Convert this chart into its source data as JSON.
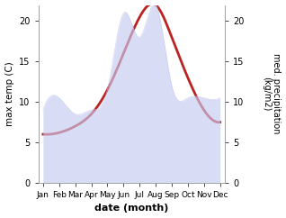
{
  "months": [
    "Jan",
    "Feb",
    "Mar",
    "Apr",
    "May",
    "Jun",
    "Jul",
    "Aug",
    "Sep",
    "Oct",
    "Nov",
    "Dec"
  ],
  "month_positions": [
    0,
    1,
    2,
    3,
    4,
    5,
    6,
    7,
    8,
    9,
    10,
    11
  ],
  "temperature": [
    6.0,
    6.2,
    7.0,
    8.5,
    11.5,
    16.0,
    20.5,
    22.0,
    18.0,
    13.0,
    9.0,
    7.5
  ],
  "precipitation": [
    9.0,
    10.5,
    8.5,
    9.0,
    11.5,
    21.0,
    18.0,
    22.0,
    12.0,
    10.5,
    10.5,
    10.5
  ],
  "temp_color": "#bb2222",
  "precip_fill_color": "#c5caf0",
  "precip_alpha": 0.65,
  "temp_ylim": [
    0,
    22
  ],
  "precip_ylim": [
    0,
    22
  ],
  "temp_yticks": [
    0,
    5,
    10,
    15,
    20
  ],
  "precip_yticks": [
    0,
    5,
    10,
    15,
    20
  ],
  "xlabel": "date (month)",
  "ylabel_left": "max temp (C)",
  "ylabel_right": "med. precipitation\n(kg/m2)",
  "bg_color": "#ffffff",
  "figsize": [
    3.18,
    2.42
  ],
  "dpi": 100
}
